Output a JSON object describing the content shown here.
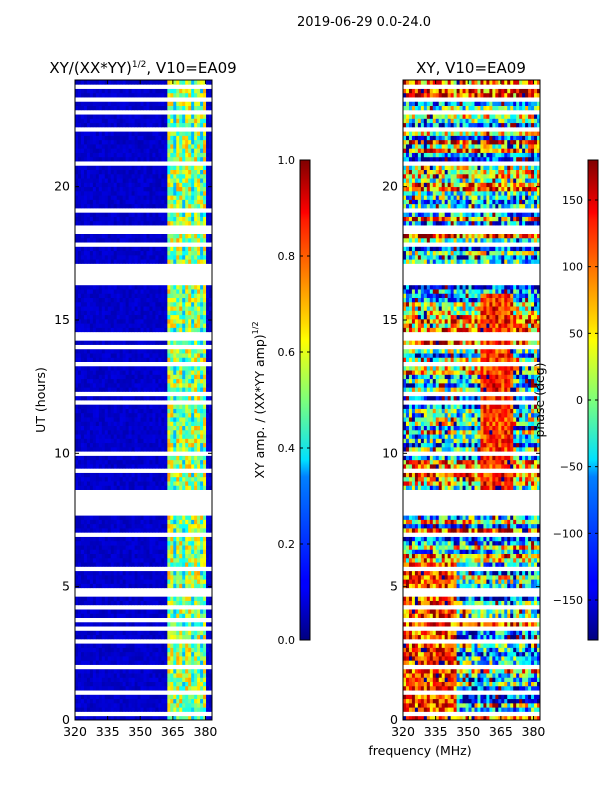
{
  "figure": {
    "suptitle": "2019-06-29 0.0-24.0",
    "shared_xlabel": "frequency (MHz)"
  },
  "chart_data": [
    {
      "type": "heatmap",
      "title": "XY/(XX*YY)^1/2, V10=EA09",
      "title_main": "XY/(XX*YY)",
      "title_exp": "1/2",
      "title_tail": ", V10=EA09",
      "xlabel": "frequency (MHz)",
      "ylabel": "UT (hours)",
      "xlim": [
        320,
        383
      ],
      "ylim": [
        0,
        24
      ],
      "x_ticks": [
        320,
        335,
        350,
        365,
        380
      ],
      "y_ticks": [
        0,
        5,
        10,
        15,
        20
      ],
      "colorbar": {
        "label": "XY amp. / (XX*YY amp)^1/2",
        "label_main": "XY amp. / (XX*YY amp)",
        "label_exp": "1/2",
        "range": [
          0.0,
          1.0
        ],
        "ticks": [
          "0.0",
          "0.2",
          "0.4",
          "0.6",
          "0.8",
          "1.0"
        ],
        "colormap": "jet"
      },
      "gaps_ut_hours": [
        0.3,
        1.1,
        1.95,
        3.0,
        3.4,
        3.75,
        4.3,
        4.8,
        5.7,
        6.9,
        7.7,
        8.0,
        8.2,
        8.35,
        8.5,
        9.4,
        10.0,
        11.9,
        12.2,
        13.3,
        14.0,
        14.4,
        16.4,
        16.6,
        16.8,
        17.0,
        17.8,
        18.4,
        19.1,
        20.9,
        22.1,
        22.8,
        23.3,
        23.8
      ],
      "regions": [
        {
          "freq_range_mhz": [
            320,
            362
          ],
          "typical_value": 0.05,
          "description": "low amplitude"
        },
        {
          "freq_range_mhz": [
            362,
            380
          ],
          "typical_value": 0.55,
          "description": "high amplitude with vertical striping"
        },
        {
          "freq_range_mhz": [
            380,
            383
          ],
          "typical_value": 0.08,
          "description": "low amplitude"
        }
      ]
    },
    {
      "type": "heatmap",
      "title": "XY, V10=EA09",
      "xlabel": "frequency (MHz)",
      "ylabel": "",
      "xlim": [
        320,
        383
      ],
      "ylim": [
        0,
        24
      ],
      "x_ticks": [
        320,
        335,
        350,
        365,
        380
      ],
      "y_ticks": [
        0,
        5,
        10,
        15,
        20
      ],
      "colorbar": {
        "label": "phase (deg)",
        "range": [
          -180,
          180
        ],
        "ticks": [
          "-150",
          "-100",
          "-50",
          "0",
          "50",
          "100",
          "150"
        ],
        "colormap": "jet"
      },
      "gaps_ut_hours": [
        0.3,
        1.1,
        1.95,
        3.0,
        3.4,
        3.75,
        4.3,
        4.8,
        5.7,
        6.9,
        7.7,
        8.0,
        8.2,
        8.35,
        8.5,
        9.4,
        10.0,
        11.9,
        12.2,
        13.3,
        14.0,
        14.4,
        16.4,
        16.6,
        16.8,
        17.0,
        17.8,
        18.4,
        19.1,
        20.9,
        22.1,
        22.8,
        23.3,
        23.8
      ],
      "description": "phase varies widely between -180 and 180 deg with mixed horizontal bands"
    }
  ]
}
